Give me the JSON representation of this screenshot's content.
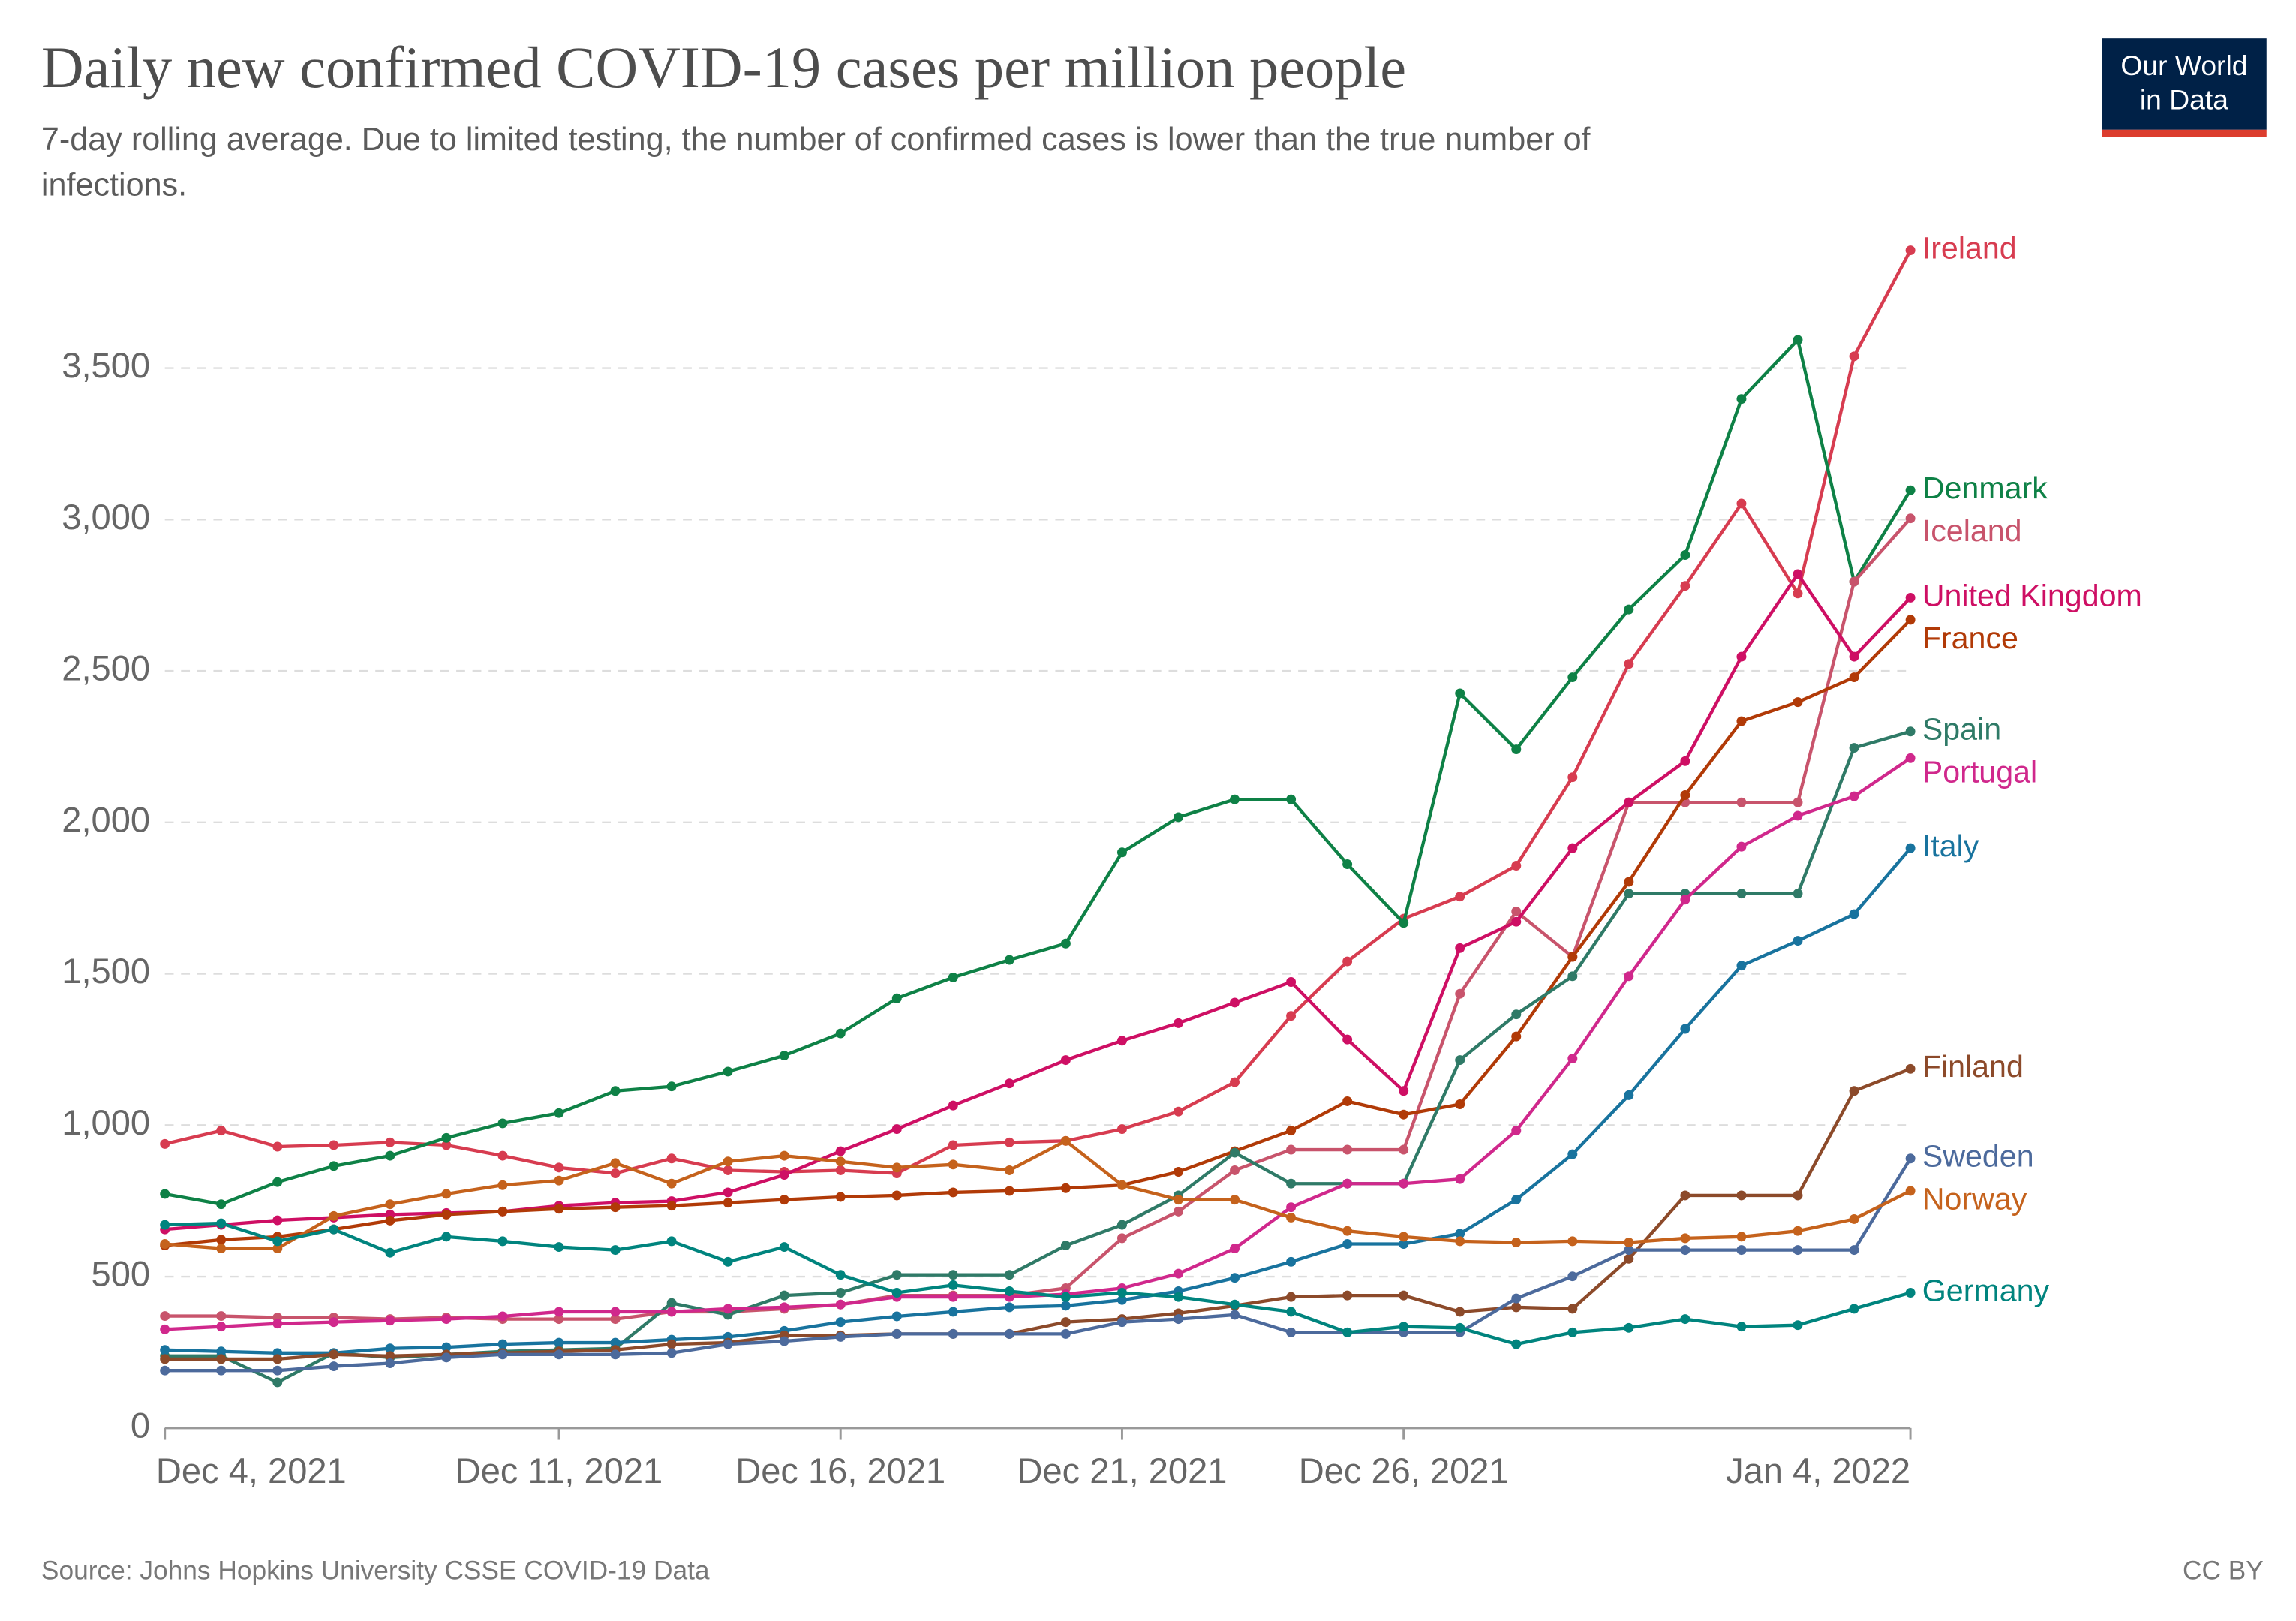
{
  "chart_data": {
    "type": "line",
    "title": "Daily new confirmed COVID-19 cases per million people",
    "subtitle": [
      "7-day rolling average. Due to limited testing, the number of confirmed cases is lower than the true number of",
      "infections."
    ],
    "logo": [
      "Our World",
      "in Data"
    ],
    "source": "Source: Johns Hopkins University CSSE COVID-19 Data",
    "license": "CC BY",
    "x": [
      "2021-12-04",
      "2021-12-05",
      "2021-12-06",
      "2021-12-07",
      "2021-12-08",
      "2021-12-09",
      "2021-12-10",
      "2021-12-11",
      "2021-12-12",
      "2021-12-13",
      "2021-12-14",
      "2021-12-15",
      "2021-12-16",
      "2021-12-17",
      "2021-12-18",
      "2021-12-19",
      "2021-12-20",
      "2021-12-21",
      "2021-12-22",
      "2021-12-23",
      "2021-12-24",
      "2021-12-25",
      "2021-12-26",
      "2021-12-27",
      "2021-12-28",
      "2021-12-29",
      "2021-12-30",
      "2021-12-31",
      "2022-01-01",
      "2022-01-02",
      "2022-01-03",
      "2022-01-04"
    ],
    "xlim": [
      "2021-12-04",
      "2022-01-04"
    ],
    "xticks": [
      {
        "value": "2021-12-04",
        "label": "Dec 4, 2021"
      },
      {
        "value": "2021-12-11",
        "label": "Dec 11, 2021"
      },
      {
        "value": "2021-12-16",
        "label": "Dec 16, 2021"
      },
      {
        "value": "2021-12-21",
        "label": "Dec 21, 2021"
      },
      {
        "value": "2021-12-26",
        "label": "Dec 26, 2021"
      },
      {
        "value": "2022-01-04",
        "label": "Jan 4, 2022"
      }
    ],
    "ylim": [
      0,
      3500
    ],
    "yticks": [
      0,
      500,
      {
        "value": 1000,
        "label": "1,000"
      },
      {
        "value": 1500,
        "label": "1,500"
      },
      {
        "value": 2000,
        "label": "2,000"
      },
      {
        "value": 2500,
        "label": "2,500"
      },
      {
        "value": 3000,
        "label": "3,000"
      },
      {
        "value": 3500,
        "label": "3,500"
      }
    ],
    "grid": true,
    "series": [
      {
        "name": "Ireland",
        "color": "#d73c50",
        "values": [
          938,
          982,
          929,
          934,
          943,
          934,
          899,
          860,
          841,
          890,
          851,
          846,
          851,
          841,
          934,
          943,
          948,
          987,
          1045,
          1142,
          1361,
          1541,
          1682,
          1755,
          1857,
          2149,
          2523,
          2781,
          3053,
          2756,
          3539,
          3889
        ]
      },
      {
        "name": "Denmark",
        "color": "#0e8146",
        "values": [
          773,
          739,
          812,
          865,
          899,
          958,
          1006,
          1040,
          1113,
          1128,
          1177,
          1230,
          1303,
          1419,
          1488,
          1546,
          1600,
          1901,
          2017,
          2076,
          2076,
          1862,
          1668,
          2426,
          2241,
          2479,
          2703,
          2883,
          3398,
          3593,
          2795,
          3097
        ]
      },
      {
        "name": "Iceland",
        "color": "#c8546c",
        "values": [
          370,
          370,
          365,
          365,
          360,
          365,
          360,
          360,
          360,
          384,
          384,
          394,
          408,
          438,
          438,
          438,
          462,
          627,
          715,
          851,
          919,
          919,
          919,
          1434,
          1706,
          1556,
          2066,
          2066,
          2066,
          2066,
          2795,
          3004
        ]
      },
      {
        "name": "United Kingdom",
        "color": "#ce0f64",
        "values": [
          656,
          671,
          686,
          695,
          705,
          710,
          715,
          734,
          744,
          749,
          778,
          836,
          914,
          987,
          1065,
          1138,
          1215,
          1279,
          1337,
          1405,
          1473,
          1283,
          1113,
          1585,
          1672,
          1915,
          2066,
          2202,
          2547,
          2820,
          2547,
          2742
        ]
      },
      {
        "name": "France",
        "color": "#b13a07",
        "values": [
          603,
          622,
          632,
          656,
          685,
          705,
          715,
          724,
          729,
          734,
          744,
          754,
          763,
          768,
          778,
          783,
          792,
          802,
          846,
          914,
          982,
          1079,
          1035,
          1069,
          1293,
          1556,
          1804,
          2090,
          2334,
          2397,
          2479,
          2669
        ]
      },
      {
        "name": "Spain",
        "color": "#2f7a67",
        "values": [
          238,
          238,
          151,
          248,
          233,
          243,
          253,
          258,
          263,
          413,
          374,
          438,
          447,
          506,
          506,
          506,
          603,
          671,
          768,
          909,
          807,
          807,
          807,
          1215,
          1366,
          1492,
          1765,
          1765,
          1765,
          1765,
          2246,
          2300
        ]
      },
      {
        "name": "Portugal",
        "color": "#d0288c",
        "values": [
          326,
          335,
          345,
          350,
          355,
          360,
          369,
          384,
          384,
          384,
          394,
          399,
          408,
          433,
          433,
          433,
          442,
          462,
          510,
          593,
          729,
          807,
          807,
          822,
          982,
          1220,
          1492,
          1745,
          1920,
          2022,
          2086,
          2212
        ]
      },
      {
        "name": "Italy",
        "color": "#18739e",
        "values": [
          258,
          253,
          248,
          248,
          263,
          267,
          277,
          282,
          282,
          292,
          301,
          321,
          350,
          369,
          384,
          399,
          404,
          423,
          452,
          496,
          549,
          608,
          608,
          642,
          754,
          904,
          1099,
          1318,
          1527,
          1609,
          1697,
          1915
        ]
      },
      {
        "name": "Finland",
        "color": "#8c4a2a",
        "values": [
          228,
          228,
          228,
          243,
          238,
          243,
          248,
          253,
          258,
          277,
          282,
          306,
          306,
          311,
          311,
          311,
          350,
          360,
          379,
          404,
          433,
          438,
          438,
          384,
          399,
          394,
          559,
          768,
          768,
          768,
          1113,
          1186
        ]
      },
      {
        "name": "Sweden",
        "color": "#4c6a9c",
        "values": [
          190,
          190,
          190,
          204,
          214,
          233,
          243,
          243,
          243,
          248,
          277,
          287,
          301,
          311,
          311,
          311,
          311,
          350,
          360,
          374,
          316,
          316,
          316,
          316,
          428,
          501,
          588,
          588,
          588,
          588,
          588,
          890
        ]
      },
      {
        "name": "Norway",
        "color": "#c5621c",
        "values": [
          608,
          593,
          593,
          700,
          739,
          773,
          802,
          817,
          875,
          807,
          880,
          899,
          880,
          860,
          870,
          851,
          948,
          802,
          754,
          754,
          695,
          651,
          632,
          617,
          613,
          617,
          613,
          627,
          632,
          651,
          690,
          783
        ]
      },
      {
        "name": "Germany",
        "color": "#00847e",
        "values": [
          671,
          676,
          617,
          656,
          579,
          632,
          617,
          598,
          588,
          617,
          549,
          598,
          506,
          447,
          472,
          452,
          433,
          447,
          433,
          408,
          384,
          316,
          335,
          331,
          277,
          316,
          331,
          360,
          335,
          340,
          394,
          447
        ]
      }
    ]
  }
}
